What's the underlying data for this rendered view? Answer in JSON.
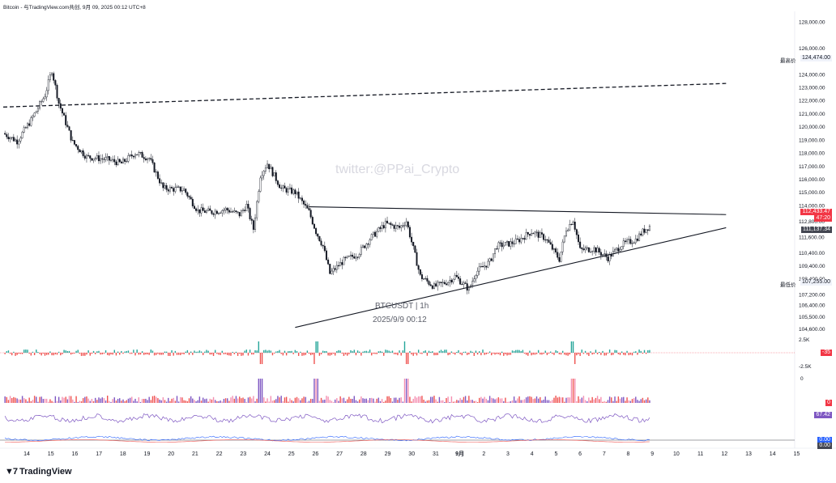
{
  "header": {
    "title": "Bitcoin - 与TradingView.com共创, 9月 09, 2025 00:12 UTC+8"
  },
  "brand": {
    "name": "TradingView",
    "logo": "tv-logo-icon"
  },
  "watermark": "twitter:@PPai_Crypto",
  "symbol_label": "BTCUSDT | 1h",
  "timestamp_label": "2025/9/9 00:12",
  "price_tags": {
    "high_label": "最高价",
    "high_value": "124,474.00",
    "low_label": "最低价",
    "low_value": "107,255.00",
    "last_price": "112,433.47",
    "countdown": "47:20",
    "ref_price": "111,137.34",
    "osc1_value": "-35",
    "osc2_value": "0",
    "rsi_value": "67.42",
    "macd_value1": "0.00",
    "macd_value2": "0.00"
  },
  "colors": {
    "up": "#26a69a",
    "down": "#ef5350",
    "last": "#f23645",
    "purple": "#7e57c2",
    "blue": "#2962ff",
    "ref": "#434651"
  },
  "chart_data": {
    "type": "candlestick",
    "symbol": "BTCUSDT",
    "interval": "1h",
    "y_axis_ticks": [
      "128,000.00",
      "126,000.00",
      "124,000.00",
      "123,000.00",
      "122,000.00",
      "121,000.00",
      "120,000.00",
      "119,000.00",
      "118,000.00",
      "117,000.00",
      "116,000.00",
      "115,000.00",
      "114,000.00",
      "112,800.00",
      "111,600.00",
      "110,400.00",
      "109,400.00",
      "108,400.00",
      "107,200.00",
      "106,400.00",
      "105,500.00",
      "104,600.00"
    ],
    "x_axis_ticks": [
      "14",
      "15",
      "16",
      "17",
      "18",
      "19",
      "20",
      "21",
      "22",
      "23",
      "24",
      "25",
      "26",
      "27",
      "28",
      "29",
      "30",
      "31",
      "9月",
      "2",
      "3",
      "4",
      "5",
      "6",
      "7",
      "8",
      "9",
      "10",
      "11",
      "12",
      "13",
      "14",
      "15"
    ],
    "ylim": [
      104000,
      128800
    ],
    "path_points": [
      [
        0,
        119500
      ],
      [
        2,
        118900
      ],
      [
        4,
        120500
      ],
      [
        6,
        122400
      ],
      [
        7,
        124300
      ],
      [
        8,
        121800
      ],
      [
        10,
        118800
      ],
      [
        12,
        117700
      ],
      [
        15,
        117500
      ],
      [
        17,
        117200
      ],
      [
        19,
        118000
      ],
      [
        21,
        117600
      ],
      [
        23,
        115300
      ],
      [
        26,
        115200
      ],
      [
        28,
        113600
      ],
      [
        30,
        113500
      ],
      [
        32,
        113700
      ],
      [
        34,
        113300
      ],
      [
        35,
        114000
      ],
      [
        36,
        112200
      ],
      [
        37,
        116300
      ],
      [
        38,
        117200
      ],
      [
        40,
        115300
      ],
      [
        42,
        115000
      ],
      [
        44,
        113500
      ],
      [
        45,
        112000
      ],
      [
        46,
        110900
      ],
      [
        47,
        108800
      ],
      [
        49,
        109800
      ],
      [
        51,
        110300
      ],
      [
        53,
        111600
      ],
      [
        55,
        112600
      ],
      [
        57,
        112300
      ],
      [
        58,
        112800
      ],
      [
        59,
        110700
      ],
      [
        60,
        108600
      ],
      [
        62,
        107800
      ],
      [
        64,
        108200
      ],
      [
        65,
        108600
      ],
      [
        67,
        107600
      ],
      [
        68,
        108900
      ],
      [
        70,
        109700
      ],
      [
        71,
        110900
      ],
      [
        73,
        111100
      ],
      [
        74,
        111300
      ],
      [
        76,
        112000
      ],
      [
        78,
        111500
      ],
      [
        80,
        109900
      ],
      [
        81,
        112200
      ],
      [
        82,
        112900
      ],
      [
        83,
        110600
      ],
      [
        85,
        110700
      ],
      [
        87,
        110000
      ],
      [
        89,
        111000
      ],
      [
        91,
        111400
      ],
      [
        92,
        112000
      ],
      [
        93,
        112430
      ]
    ],
    "volume_spikes_at": [
      37,
      45,
      58,
      82
    ],
    "trendlines": [
      {
        "name": "upper",
        "from": [
          44,
          113900
        ],
        "to": [
          104,
          113300
        ]
      },
      {
        "name": "lower",
        "from": [
          42,
          104700
        ],
        "to": [
          104,
          112300
        ]
      },
      {
        "name": "dashed",
        "from": [
          0,
          121500
        ],
        "to": [
          104,
          123300
        ]
      }
    ],
    "panels": {
      "osc1_ticks": [
        "2.5K",
        "-2.5K"
      ],
      "osc2_ticks": [
        "0"
      ]
    }
  }
}
